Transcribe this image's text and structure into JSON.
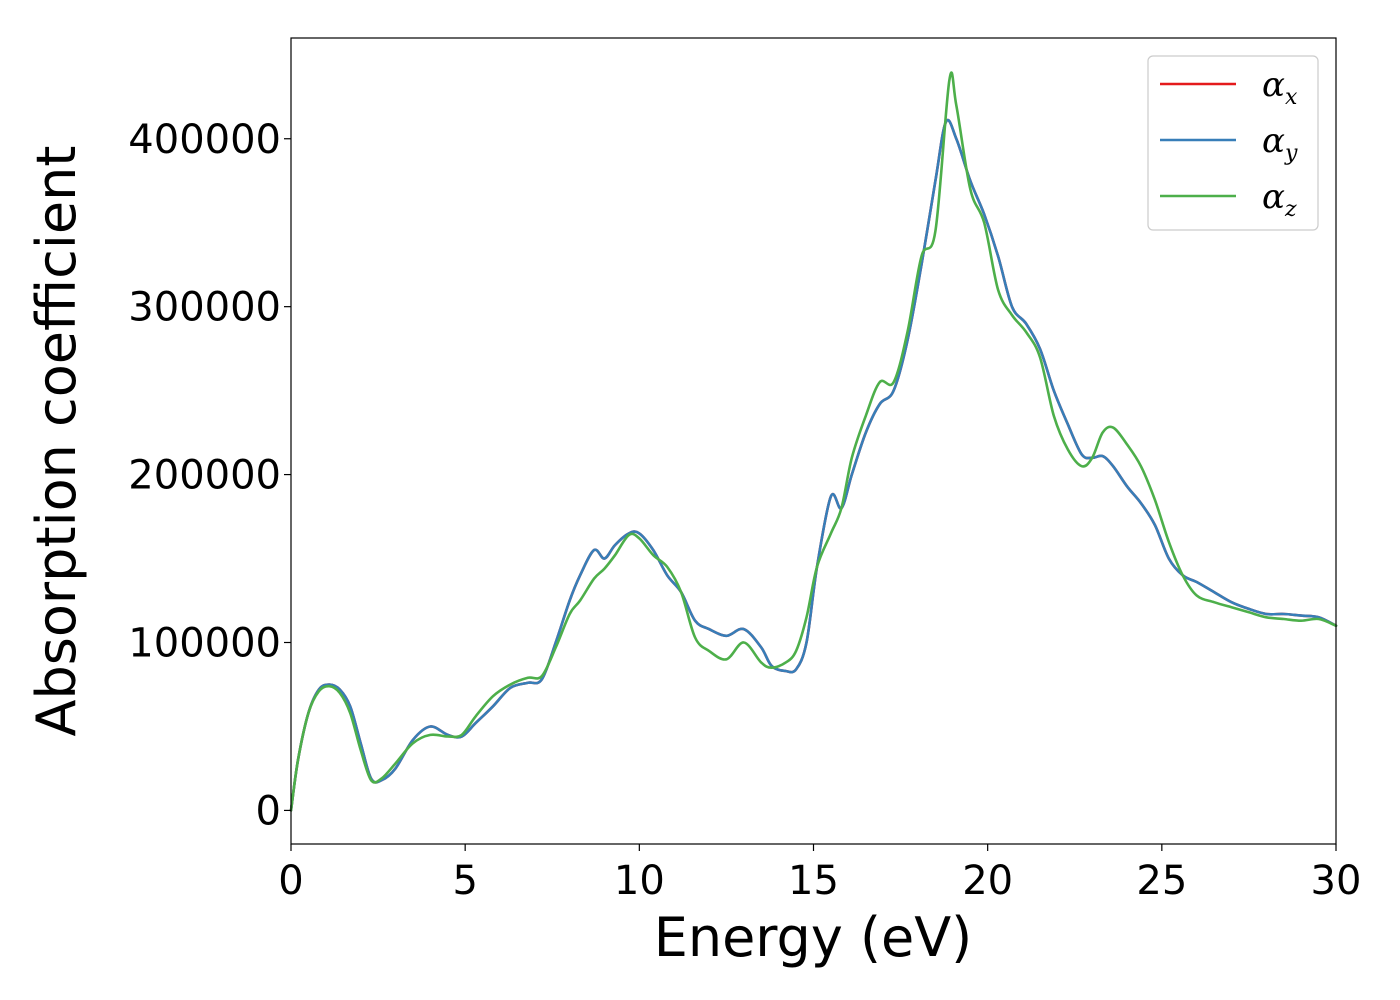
{
  "chart_data": {
    "type": "line",
    "xlabel": "Energy (eV)",
    "ylabel": "Absorption coefficient",
    "xlim": [
      0,
      30
    ],
    "ylim": [
      -20000,
      460000
    ],
    "xticks": [
      0,
      5,
      10,
      15,
      20,
      25,
      30
    ],
    "xtick_labels": [
      "0",
      "5",
      "10",
      "15",
      "20",
      "25",
      "30"
    ],
    "yticks": [
      0,
      100000,
      200000,
      300000,
      400000
    ],
    "ytick_labels": [
      "0",
      "100000",
      "200000",
      "300000",
      "400000"
    ],
    "grid": false,
    "legend_position": "top-right",
    "series": [
      {
        "name": "α",
        "subscript": "x",
        "color": "#e41a1c",
        "x": [
          0,
          0.2,
          0.5,
          0.8,
          1.1,
          1.4,
          1.7,
          2.0,
          2.3,
          2.6,
          3.0,
          3.5,
          4.0,
          4.5,
          4.9,
          5.3,
          5.8,
          6.3,
          6.8,
          7.2,
          7.6,
          8.0,
          8.3,
          8.7,
          9.0,
          9.3,
          9.7,
          10.0,
          10.4,
          10.8,
          11.2,
          11.6,
          12.0,
          12.5,
          13.0,
          13.5,
          13.8,
          14.2,
          14.5,
          14.8,
          15.1,
          15.5,
          15.8,
          16.1,
          16.5,
          16.9,
          17.3,
          17.7,
          18.1,
          18.5,
          18.8,
          19.1,
          19.5,
          19.9,
          20.3,
          20.7,
          21.1,
          21.5,
          21.9,
          22.3,
          22.7,
          23.0,
          23.3,
          23.6,
          24.0,
          24.4,
          24.8,
          25.2,
          25.6,
          26.0,
          26.5,
          27.0,
          27.5,
          28.0,
          28.5,
          29.0,
          29.5,
          30.0
        ],
        "y": [
          0,
          30000,
          58000,
          72000,
          75000,
          72000,
          62000,
          40000,
          19000,
          18000,
          25000,
          42000,
          50000,
          45000,
          44000,
          52000,
          62000,
          73000,
          76000,
          78000,
          100000,
          125000,
          140000,
          155000,
          150000,
          158000,
          165000,
          165000,
          155000,
          140000,
          130000,
          113000,
          108000,
          104000,
          108000,
          97000,
          86000,
          83000,
          84000,
          100000,
          145000,
          187000,
          180000,
          200000,
          225000,
          242000,
          250000,
          280000,
          325000,
          375000,
          410000,
          400000,
          375000,
          355000,
          330000,
          300000,
          290000,
          275000,
          250000,
          230000,
          212000,
          210000,
          211000,
          205000,
          193000,
          183000,
          170000,
          150000,
          140000,
          136000,
          130000,
          124000,
          120000,
          117000,
          117000,
          116000,
          115000,
          110000
        ]
      },
      {
        "name": "α",
        "subscript": "y",
        "color": "#377eb8",
        "x": [
          0,
          0.2,
          0.5,
          0.8,
          1.1,
          1.4,
          1.7,
          2.0,
          2.3,
          2.6,
          3.0,
          3.5,
          4.0,
          4.5,
          4.9,
          5.3,
          5.8,
          6.3,
          6.8,
          7.2,
          7.6,
          8.0,
          8.3,
          8.7,
          9.0,
          9.3,
          9.7,
          10.0,
          10.4,
          10.8,
          11.2,
          11.6,
          12.0,
          12.5,
          13.0,
          13.5,
          13.8,
          14.2,
          14.5,
          14.8,
          15.1,
          15.5,
          15.8,
          16.1,
          16.5,
          16.9,
          17.3,
          17.7,
          18.1,
          18.5,
          18.8,
          19.1,
          19.5,
          19.9,
          20.3,
          20.7,
          21.1,
          21.5,
          21.9,
          22.3,
          22.7,
          23.0,
          23.3,
          23.6,
          24.0,
          24.4,
          24.8,
          25.2,
          25.6,
          26.0,
          26.5,
          27.0,
          27.5,
          28.0,
          28.5,
          29.0,
          29.5,
          30.0
        ],
        "y": [
          0,
          30000,
          58000,
          72000,
          75000,
          72000,
          62000,
          40000,
          19000,
          18000,
          25000,
          42000,
          50000,
          45000,
          44000,
          52000,
          62000,
          73000,
          76000,
          78000,
          100000,
          125000,
          140000,
          155000,
          150000,
          158000,
          165000,
          165000,
          155000,
          140000,
          130000,
          113000,
          108000,
          104000,
          108000,
          97000,
          86000,
          83000,
          84000,
          100000,
          145000,
          187000,
          180000,
          200000,
          225000,
          242000,
          250000,
          280000,
          325000,
          375000,
          410000,
          400000,
          375000,
          355000,
          330000,
          300000,
          290000,
          275000,
          250000,
          230000,
          212000,
          210000,
          211000,
          205000,
          193000,
          183000,
          170000,
          150000,
          140000,
          136000,
          130000,
          124000,
          120000,
          117000,
          117000,
          116000,
          115000,
          110000
        ]
      },
      {
        "name": "α",
        "subscript": "z",
        "color": "#4daf4a",
        "x": [
          0,
          0.2,
          0.5,
          0.8,
          1.1,
          1.4,
          1.7,
          2.0,
          2.3,
          2.6,
          3.0,
          3.5,
          4.0,
          4.5,
          4.9,
          5.3,
          5.8,
          6.3,
          6.8,
          7.2,
          7.6,
          8.0,
          8.3,
          8.7,
          9.0,
          9.3,
          9.7,
          10.0,
          10.4,
          10.8,
          11.2,
          11.6,
          12.0,
          12.5,
          13.0,
          13.5,
          13.8,
          14.2,
          14.5,
          14.8,
          15.1,
          15.5,
          15.8,
          16.1,
          16.5,
          16.9,
          17.3,
          17.7,
          18.1,
          18.5,
          18.9,
          19.1,
          19.5,
          19.9,
          20.3,
          20.7,
          21.1,
          21.5,
          21.9,
          22.3,
          22.7,
          23.0,
          23.3,
          23.6,
          24.0,
          24.4,
          24.8,
          25.2,
          25.6,
          26.0,
          26.5,
          27.0,
          27.5,
          28.0,
          28.5,
          29.0,
          29.5,
          30.0
        ],
        "y": [
          0,
          30000,
          58000,
          71000,
          74000,
          70000,
          58000,
          36000,
          18000,
          19000,
          28000,
          40000,
          45000,
          44000,
          45000,
          56000,
          68000,
          75000,
          79000,
          80000,
          97000,
          117000,
          125000,
          138000,
          144000,
          152000,
          164000,
          162000,
          152000,
          145000,
          130000,
          103000,
          95000,
          90000,
          100000,
          88000,
          85000,
          88000,
          95000,
          115000,
          145000,
          165000,
          180000,
          210000,
          235000,
          255000,
          255000,
          285000,
          330000,
          345000,
          435000,
          420000,
          370000,
          350000,
          310000,
          295000,
          285000,
          270000,
          235000,
          215000,
          205000,
          210000,
          225000,
          228000,
          218000,
          205000,
          185000,
          160000,
          140000,
          128000,
          124000,
          121000,
          118000,
          115000,
          114000,
          113000,
          114000,
          110000
        ]
      }
    ]
  }
}
